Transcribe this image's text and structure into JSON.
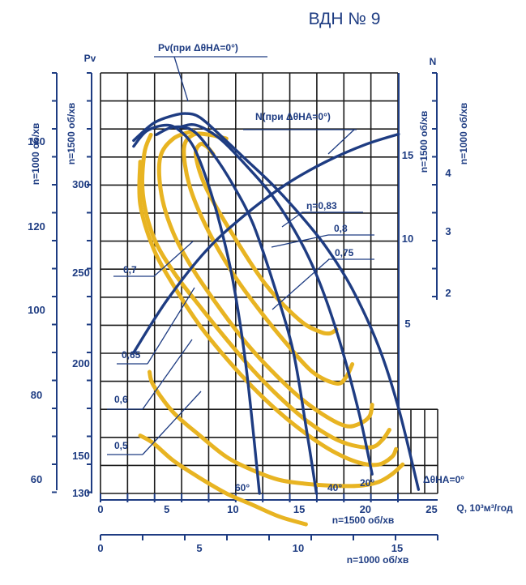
{
  "chart_data": {
    "type": "line",
    "title": "ВДН № 9",
    "ylabel": "Pv",
    "y2label": "N",
    "xlabel_units": "Q, 10³м³/год",
    "axis_labels": {
      "left_outer": "n=1000 об/хв",
      "left_inner": "n=1500 об/хв",
      "right_inner": "n=1500 об/хв",
      "right_outer": "n=1000 об/хв",
      "bottom_inner": "n=1500 об/хв",
      "bottom_outer": "n=1000 об/хв"
    },
    "ticks": {
      "pv_1500": [
        "300",
        "250",
        "200",
        "150",
        "130"
      ],
      "pv_1000": [
        "140",
        "120",
        "100",
        "80",
        "60"
      ],
      "n_1500": [
        "15",
        "10",
        "5"
      ],
      "n_1000": [
        "4",
        "3",
        "2"
      ],
      "q_1500": [
        "0",
        "5",
        "10",
        "15",
        "20",
        "25"
      ],
      "q_1000": [
        "0",
        "5",
        "10",
        "15"
      ]
    },
    "xlim": [
      0,
      25
    ],
    "ylim": [
      130,
      330
    ],
    "annotations": {
      "pv_curve": "Pv(при ΔθНА=0°)",
      "n_curve": "N(при ΔθНА=0°)",
      "angles": [
        "60°",
        "40°",
        "20°",
        "ΔθНА=0°"
      ],
      "efficiency": [
        "η=0,83",
        "0,8",
        "0,75",
        "0,7",
        "0,65",
        "0,6",
        "0,5"
      ]
    },
    "series": [
      {
        "name": "60°",
        "x": [
          2.5,
          3.5,
          5.0,
          6.0,
          7.0,
          8.0,
          9.0,
          10.0,
          11.0,
          12.0
        ],
        "y": [
          310,
          318,
          321,
          318,
          310,
          293,
          270,
          240,
          195,
          130
        ]
      },
      {
        "name": "40°",
        "x": [
          4.2,
          5.5,
          7.0,
          8.5,
          10.0,
          11.5,
          13.0,
          14.5,
          15.5,
          16.3
        ],
        "y": [
          316,
          320,
          318,
          306,
          290,
          270,
          240,
          205,
          165,
          130
        ]
      },
      {
        "name": "20°",
        "x": [
          6.0,
          7.2,
          9.0,
          11.0,
          13.0,
          15.0,
          16.5,
          18.0,
          19.5,
          20.5
        ],
        "y": [
          320,
          321,
          314,
          300,
          284,
          262,
          240,
          210,
          172,
          140
        ]
      },
      {
        "name": "ΔθНА=0°",
        "x": [
          2.5,
          4.0,
          5.5,
          6.5,
          7.5,
          9.0,
          11.0,
          13.0,
          15.0,
          17.0,
          19.0,
          21.0,
          22.5,
          24.0
        ],
        "y": [
          313,
          322,
          326,
          327,
          325,
          316,
          303,
          290,
          275,
          258,
          236,
          206,
          174,
          132
        ]
      },
      {
        "name": "N(при ΔθНА=0°)",
        "x": [
          2.5,
          5.0,
          8.0,
          11.0,
          14.0,
          17.0,
          20.0,
          22.5
        ],
        "y_n1500": [
          3.5,
          6.5,
          9.4,
          11.5,
          13.2,
          14.5,
          15.5,
          16.1
        ]
      }
    ],
    "efficiency_contours": [
      {
        "label": "η=0,83",
        "x": [
          8.5,
          8.0,
          7.5,
          7.2,
          8.0,
          10.0,
          12.5,
          15.0,
          16.5,
          17.3,
          17.8
        ],
        "y": [
          306,
          310,
          311,
          305,
          288,
          264,
          238,
          220,
          214,
          213,
          215
        ]
      },
      {
        "label": "0,8",
        "x": [
          9.5,
          8.2,
          7.0,
          6.3,
          6.7,
          8.0,
          10.0,
          12.0,
          14.0,
          16.0,
          17.8,
          18.5,
          19.0
        ],
        "y": [
          314,
          316,
          316,
          309,
          290,
          268,
          244,
          225,
          208,
          193,
          187,
          190,
          197
        ]
      },
      {
        "label": "0,75",
        "x": [
          7.0,
          5.5,
          4.5,
          4.6,
          5.5,
          7.0,
          9.0,
          11.0,
          13.0,
          15.0,
          17.0,
          18.5,
          19.5,
          20.3,
          20.5
        ],
        "y": [
          318,
          314,
          304,
          285,
          265,
          246,
          226,
          208,
          193,
          180,
          170,
          165,
          166,
          170,
          176
        ]
      },
      {
        "label": "0,7",
        "x": [
          3.8,
          3.3,
          3.2,
          4.0,
          5.5,
          7.5,
          9.5,
          11.5,
          13.5,
          15.5,
          17.5,
          19.0,
          20.5,
          21.3,
          21.8
        ],
        "y": [
          316,
          306,
          285,
          263,
          245,
          227,
          210,
          194,
          180,
          168,
          159,
          155,
          154,
          158,
          163
        ]
      },
      {
        "label": "0,65",
        "x": [
          3.0,
          3.0,
          4.0,
          5.5,
          7.5,
          9.5,
          11.5,
          13.5,
          15.5,
          17.5,
          19.5,
          21.0,
          22.0,
          22.3
        ],
        "y": [
          302,
          280,
          257,
          238,
          217,
          200,
          185,
          172,
          161,
          152,
          146,
          145,
          149,
          153
        ]
      },
      {
        "label": "0,6",
        "x": [
          3.7,
          4.0,
          5.5,
          7.5,
          9.5,
          11.5,
          13.5,
          15.5,
          17.5,
          19.5,
          21.0,
          22.0,
          22.8
        ],
        "y": [
          193,
          186,
          172,
          160,
          149,
          142,
          137,
          135,
          134,
          134,
          136,
          140,
          145
        ]
      },
      {
        "label": "0,5",
        "x": [
          3.0,
          4.0,
          5.5,
          7.5,
          9.5,
          11.5,
          13.5,
          15.5
        ],
        "y": [
          160,
          156,
          147,
          138,
          130,
          124,
          118,
          114
        ]
      }
    ],
    "grid": true
  },
  "colors": {
    "blue": "#1e3c82",
    "yellow": "#e8b422",
    "grid": "#1a1a1a"
  }
}
